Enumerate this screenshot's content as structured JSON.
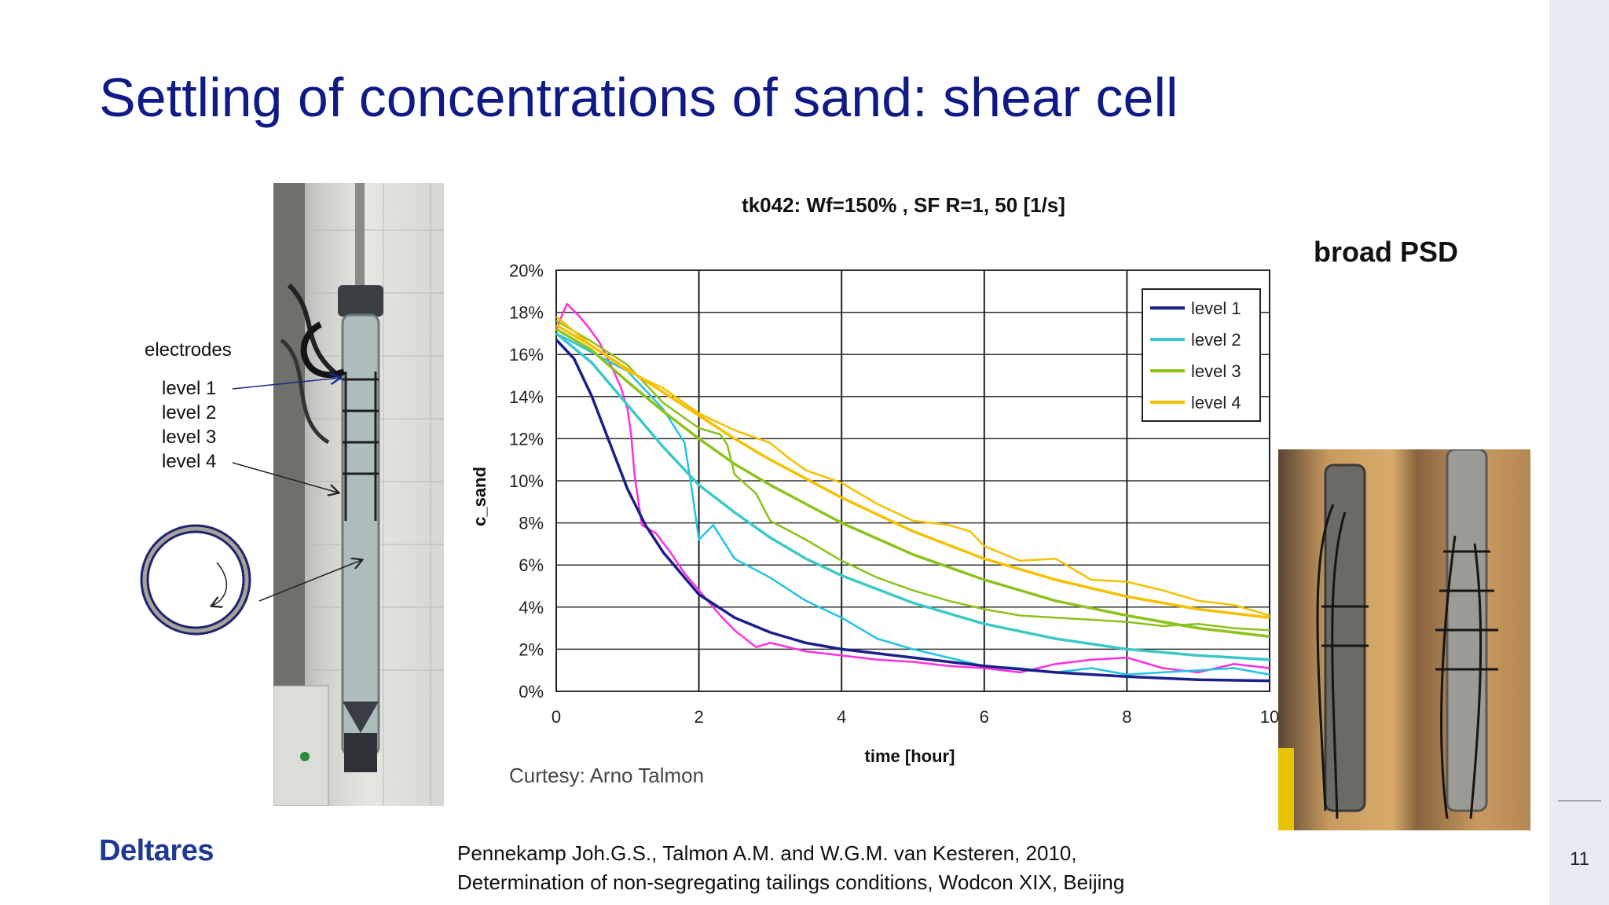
{
  "slide": {
    "title": "Settling of concentrations of sand: shear cell",
    "logo": "Deltares",
    "page_number": "11",
    "citation": [
      "Pennekamp Joh.G.S., Talmon A.M. and W.G.M. van Kesteren, 2010,",
      "Determination of non-segregating tailings conditions, Wodcon XIX, Beijing"
    ]
  },
  "annotations": {
    "electrodes": "electrodes",
    "levels": [
      "level 1",
      "level 2",
      "level 3",
      "level 4"
    ],
    "right_heading": "broad PSD"
  },
  "colors": {
    "title": "#101a86",
    "logo": "#1f3a93",
    "level1": "#1b1f8a",
    "level2": "#3cc8c8",
    "level3": "#8cc21a",
    "level4": "#f5c000",
    "raw_magenta": "#ff2ee0",
    "raw_cyan": "#22c4e6"
  },
  "chart_data": {
    "type": "line",
    "title": "tk042: Wf=150% , SF R=1, 50 [1/s]",
    "xlabel": "time [hour]",
    "ylabel": "c_sand",
    "xlim": [
      0,
      10
    ],
    "ylim": [
      0,
      20
    ],
    "xticks": [
      "0",
      "2",
      "4",
      "6",
      "8",
      "10"
    ],
    "yticks": [
      "0%",
      "2%",
      "4%",
      "6%",
      "8%",
      "10%",
      "12%",
      "14%",
      "16%",
      "18%",
      "20%"
    ],
    "grid": true,
    "legend_position": "top-right",
    "annotation": "Curtesy: Arno Talmon",
    "series": [
      {
        "name": "level 1",
        "color": "#1b1f8a",
        "x": [
          0,
          0.25,
          0.5,
          0.75,
          1,
          1.25,
          1.5,
          2,
          2.5,
          3,
          3.5,
          4,
          5,
          6,
          7,
          8,
          9,
          10
        ],
        "y": [
          16.7,
          15.8,
          14,
          11.8,
          9.6,
          7.9,
          6.6,
          4.6,
          3.5,
          2.8,
          2.3,
          2,
          1.6,
          1.2,
          0.9,
          0.7,
          0.55,
          0.5
        ]
      },
      {
        "name": "level 2",
        "color": "#3cc8c8",
        "x": [
          0,
          0.5,
          1,
          1.5,
          2,
          2.5,
          3,
          3.5,
          4,
          5,
          6,
          7,
          8,
          9,
          10
        ],
        "y": [
          17,
          15.6,
          13.6,
          11.6,
          9.8,
          8.5,
          7.3,
          6.3,
          5.5,
          4.2,
          3.2,
          2.5,
          2,
          1.7,
          1.5
        ]
      },
      {
        "name": "level 3",
        "color": "#8cc21a",
        "x": [
          0,
          0.5,
          1,
          1.5,
          2,
          2.5,
          3,
          3.5,
          4,
          5,
          6,
          7,
          8,
          9,
          10
        ],
        "y": [
          17.2,
          16.2,
          14.7,
          13.3,
          12,
          10.8,
          9.8,
          8.9,
          8,
          6.5,
          5.3,
          4.3,
          3.6,
          3,
          2.6
        ]
      },
      {
        "name": "level 4",
        "color": "#f5c000",
        "x": [
          0,
          0.5,
          1,
          1.5,
          2,
          2.5,
          3,
          3.5,
          4,
          5,
          6,
          7,
          8,
          9,
          10
        ],
        "y": [
          17.4,
          16.4,
          15.3,
          14.2,
          13.1,
          12,
          11,
          10.1,
          9.2,
          7.6,
          6.3,
          5.3,
          4.5,
          3.9,
          3.5
        ]
      }
    ],
    "raw_series": [
      {
        "color": "#ff2ee0",
        "x": [
          0,
          0.15,
          0.3,
          0.45,
          0.6,
          0.75,
          0.9,
          1,
          1.05,
          1.1,
          1.2,
          1.4,
          1.6,
          1.8,
          2,
          2.3,
          2.5,
          2.8,
          3,
          3.5,
          4,
          4.5,
          5,
          5.5,
          6,
          6.5,
          7,
          7.5,
          8,
          8.5,
          9,
          9.5,
          10
        ],
        "y": [
          17.2,
          18.4,
          17.9,
          17.3,
          16.6,
          15.6,
          14.5,
          13.4,
          12.2,
          10.2,
          7.9,
          7.5,
          6.6,
          5.6,
          4.8,
          3.6,
          2.9,
          2.1,
          2.3,
          1.9,
          1.7,
          1.5,
          1.4,
          1.2,
          1.1,
          0.9,
          1.3,
          1.5,
          1.6,
          1.1,
          0.9,
          1.3,
          1.1
        ]
      },
      {
        "color": "#22c4e6",
        "x": [
          0,
          0.5,
          1,
          1.5,
          1.8,
          1.9,
          2,
          2.2,
          2.5,
          3,
          3.5,
          4,
          4.5,
          5,
          5.5,
          6,
          6.5,
          7,
          7.5,
          8,
          8.5,
          9,
          9.5,
          10
        ],
        "y": [
          17,
          16.1,
          15.2,
          13.4,
          11.8,
          9.6,
          7.2,
          7.9,
          6.3,
          5.4,
          4.3,
          3.5,
          2.5,
          2,
          1.6,
          1.2,
          1.1,
          0.9,
          1.1,
          0.8,
          0.9,
          1,
          1.1,
          0.8
        ]
      },
      {
        "color": "#8cc21a",
        "x": [
          0,
          0.5,
          1,
          1.5,
          2,
          2.3,
          2.4,
          2.5,
          2.8,
          3,
          3.5,
          4,
          4.5,
          5,
          5.5,
          6,
          6.5,
          7,
          7.5,
          8,
          8.5,
          9,
          9.5,
          10
        ],
        "y": [
          17.6,
          16.6,
          15.5,
          13.7,
          12.5,
          12.2,
          11.7,
          10.3,
          9.4,
          8.1,
          7.2,
          6.2,
          5.4,
          4.8,
          4.3,
          3.9,
          3.6,
          3.5,
          3.4,
          3.3,
          3.1,
          3.2,
          3,
          2.9
        ]
      },
      {
        "color": "#f5c000",
        "x": [
          0,
          0.5,
          1,
          1.5,
          2,
          2.5,
          3,
          3.25,
          3.5,
          4,
          4.5,
          5,
          5.5,
          5.8,
          6,
          6.5,
          7,
          7.5,
          8,
          8.5,
          9,
          9.5,
          10
        ],
        "y": [
          17.8,
          16.4,
          15.2,
          14.4,
          13.2,
          12.4,
          11.8,
          11.1,
          10.5,
          9.9,
          8.9,
          8.1,
          7.9,
          7.6,
          6.9,
          6.2,
          6.3,
          5.3,
          5.2,
          4.8,
          4.3,
          4.1,
          3.6
        ]
      }
    ]
  }
}
